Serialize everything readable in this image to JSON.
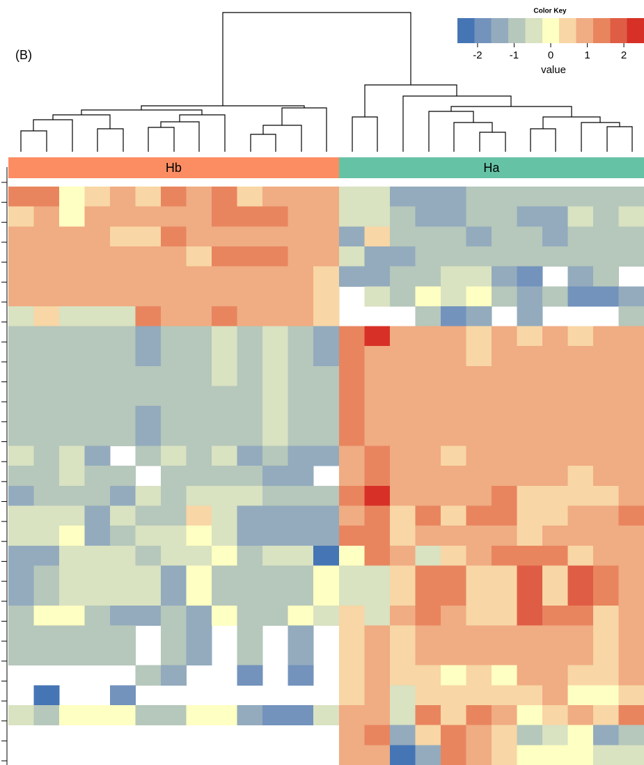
{
  "chart_data": {
    "type": "heatmap",
    "label": "(B)",
    "groups": [
      {
        "name": "Hb",
        "color": "#fc8d62"
      },
      {
        "name": "Ha",
        "color": "#66c2a5"
      }
    ],
    "column_groups": [
      0,
      0,
      0,
      0,
      0,
      0,
      0,
      0,
      0,
      0,
      0,
      0,
      0,
      1,
      1,
      1,
      1,
      1,
      1,
      1,
      1,
      1,
      1,
      1,
      1
    ],
    "colorbar": {
      "title": "Color Key",
      "label": "value",
      "lim": [
        -2.55,
        2.55
      ],
      "ticks": [
        -2,
        -1,
        0,
        1,
        2
      ],
      "colors": [
        "#4575b4",
        "#7393bd",
        "#93abbd",
        "#b6c7bb",
        "#d9e2c1",
        "#feffc2",
        "#f8d6a5",
        "#f0ac83",
        "#e8855f",
        "#df5d45",
        "#d73027"
      ]
    },
    "values": [
      [
        1.4,
        1.4,
        0,
        0.5,
        0.9,
        0.5,
        1.4,
        0.9,
        1.4,
        0.5,
        0.9,
        0.9,
        0.9,
        -0.5,
        -0.5,
        -1.4,
        -1.4,
        -1.4,
        -0.9,
        -0.9,
        -0.9,
        -0.9,
        -0.9,
        -0.9,
        -0.9
      ],
      [
        0.5,
        0.9,
        0,
        0.9,
        0.9,
        0.9,
        0.9,
        0.9,
        1.4,
        1.4,
        1.4,
        0.9,
        0.9,
        -0.5,
        -0.5,
        -0.9,
        -1.4,
        -1.4,
        -0.9,
        -0.9,
        -1.4,
        -1.4,
        -0.5,
        -0.9,
        -0.5
      ],
      [
        0.9,
        0.9,
        0.9,
        0.9,
        0.5,
        0.5,
        1.4,
        0.9,
        0.9,
        0.9,
        0.9,
        0.9,
        0.9,
        -1.4,
        0.5,
        -0.9,
        -0.9,
        -0.9,
        -1.4,
        -0.9,
        -0.9,
        -1.4,
        -0.9,
        -0.9,
        -0.9
      ],
      [
        0.9,
        0.9,
        0.9,
        0.9,
        0.9,
        0.9,
        0.9,
        0.5,
        1.4,
        1.4,
        1.4,
        0.9,
        0.9,
        -0.5,
        -1.4,
        -1.4,
        -0.9,
        -0.9,
        -0.9,
        -0.9,
        -0.9,
        -0.9,
        -0.9,
        -0.9,
        -0.9
      ],
      [
        0.9,
        0.9,
        0.9,
        0.9,
        0.9,
        0.9,
        0.9,
        0.9,
        0.9,
        0.9,
        0.9,
        0.9,
        0.5,
        -1.4,
        -1.4,
        -0.9,
        -0.9,
        -0.5,
        -0.5,
        -1.4,
        -1.9,
        null,
        -1.4,
        -0.9,
        null
      ],
      [
        0.9,
        0.9,
        0.9,
        0.9,
        0.9,
        0.9,
        0.9,
        0.9,
        0.9,
        0.9,
        0.9,
        0.9,
        0.5,
        null,
        -0.5,
        -0.9,
        0,
        -0.5,
        0,
        -0.9,
        -1.4,
        -0.9,
        -1.9,
        -1.9,
        -1.4
      ],
      [
        -0.5,
        0.5,
        -0.5,
        -0.5,
        -0.5,
        1.4,
        0.9,
        0.9,
        1.4,
        0.9,
        0.9,
        0.9,
        0.5,
        null,
        null,
        null,
        -0.9,
        -1.9,
        -1.4,
        null,
        -1.4,
        null,
        null,
        null,
        -0.9
      ],
      [
        -0.9,
        -0.9,
        -0.9,
        -0.9,
        -0.9,
        -1.4,
        -0.9,
        -0.9,
        -0.5,
        -0.9,
        -0.5,
        -0.9,
        -1.4,
        1.4,
        2.3,
        0.9,
        0.9,
        0.9,
        0.5,
        0.9,
        0.5,
        0.9,
        0.5,
        0.9,
        0.9
      ],
      [
        -0.9,
        -0.9,
        -0.9,
        -0.9,
        -0.9,
        -1.4,
        -0.9,
        -0.9,
        -0.5,
        -0.9,
        -0.5,
        -0.9,
        -1.4,
        1.4,
        0.9,
        0.9,
        0.9,
        0.9,
        0.5,
        0.9,
        0.9,
        0.9,
        0.9,
        0.9,
        0.9
      ],
      [
        -0.9,
        -0.9,
        -0.9,
        -0.9,
        -0.9,
        -0.9,
        -0.9,
        -0.9,
        -0.5,
        -0.9,
        -0.5,
        -0.9,
        -0.9,
        1.4,
        0.9,
        0.9,
        0.9,
        0.9,
        0.9,
        0.9,
        0.9,
        0.9,
        0.9,
        0.9,
        0.9
      ],
      [
        -0.9,
        -0.9,
        -0.9,
        -0.9,
        -0.9,
        -0.9,
        -0.9,
        -0.9,
        -0.9,
        -0.9,
        -0.5,
        -0.9,
        -0.9,
        1.4,
        0.9,
        0.9,
        0.9,
        0.9,
        0.9,
        0.9,
        0.9,
        0.9,
        0.9,
        0.9,
        0.9
      ],
      [
        -0.9,
        -0.9,
        -0.9,
        -0.9,
        -0.9,
        -1.4,
        -0.9,
        -0.9,
        -0.9,
        -0.9,
        -0.5,
        -0.9,
        -0.9,
        1.4,
        0.9,
        0.9,
        0.9,
        0.9,
        0.9,
        0.9,
        0.9,
        0.9,
        0.9,
        0.9,
        0.9
      ],
      [
        -0.9,
        -0.9,
        -0.9,
        -0.9,
        -0.9,
        -1.4,
        -0.9,
        -0.9,
        -0.9,
        -0.9,
        -0.5,
        -0.9,
        -0.9,
        1.4,
        0.9,
        0.9,
        0.9,
        0.9,
        0.9,
        0.9,
        0.9,
        0.9,
        0.9,
        0.9,
        0.9
      ],
      [
        -0.5,
        -0.9,
        -0.5,
        -1.4,
        null,
        -0.9,
        -0.5,
        -0.9,
        -0.5,
        -1.4,
        -0.9,
        -1.4,
        -1.4,
        0.9,
        1.4,
        0.9,
        0.9,
        0.5,
        0.9,
        0.9,
        0.9,
        0.9,
        0.9,
        0.9,
        0.9
      ],
      [
        -0.9,
        -0.9,
        -0.5,
        -0.9,
        -0.9,
        null,
        -0.9,
        -0.9,
        -0.9,
        -0.9,
        -1.4,
        -1.4,
        null,
        0.9,
        1.4,
        0.9,
        0.9,
        0.9,
        0.9,
        0.9,
        0.9,
        0.9,
        0.5,
        0.9,
        0.9
      ],
      [
        -1.4,
        -0.9,
        -0.9,
        -0.9,
        -1.4,
        -0.5,
        -0.9,
        -0.5,
        -0.5,
        -0.5,
        -0.9,
        -0.9,
        -0.9,
        1.4,
        2.3,
        0.9,
        0.9,
        0.9,
        0.9,
        1.4,
        0.5,
        0.5,
        0.5,
        0.5,
        0.9
      ],
      [
        -0.5,
        -0.5,
        -0.5,
        -1.4,
        -0.5,
        -0.9,
        -0.9,
        0.5,
        -0.5,
        -1.4,
        -1.4,
        -1.4,
        -1.4,
        0.9,
        1.4,
        0.5,
        1.4,
        0.5,
        1.4,
        1.4,
        0.5,
        0.5,
        0.9,
        0.9,
        1.4
      ],
      [
        -0.5,
        -0.5,
        0,
        -1.4,
        -0.9,
        -0.5,
        -0.5,
        0,
        -0.5,
        -1.4,
        -1.4,
        -1.4,
        -1.4,
        1.4,
        1.4,
        0.5,
        0.9,
        0.9,
        0.9,
        0.9,
        0.5,
        0.9,
        0.9,
        0.9,
        0.9
      ],
      [
        -1.4,
        -1.4,
        -0.5,
        -0.5,
        -0.5,
        -0.9,
        -0.5,
        -0.5,
        0,
        -0.9,
        -0.5,
        -0.5,
        -2.3,
        0,
        1.4,
        0.9,
        -0.5,
        0.5,
        0.9,
        1.4,
        1.4,
        1.4,
        0.5,
        0.9,
        0.9
      ],
      [
        -1.4,
        -0.9,
        -0.5,
        -0.5,
        -0.5,
        -0.5,
        -1.4,
        0,
        -0.9,
        -0.9,
        -0.9,
        -0.9,
        0,
        -0.5,
        -0.5,
        0.5,
        1.4,
        1.4,
        0.5,
        0.5,
        1.9,
        0.5,
        1.9,
        1.4,
        0.9
      ],
      [
        -1.4,
        -0.9,
        -0.5,
        -0.5,
        -0.5,
        -0.5,
        -1.4,
        0,
        -0.9,
        -0.9,
        -0.9,
        -0.9,
        0,
        -0.5,
        -0.5,
        0.5,
        1.4,
        1.4,
        0.5,
        0.5,
        1.9,
        0.5,
        1.9,
        1.4,
        0.9
      ],
      [
        -0.9,
        0,
        0,
        -0.9,
        -1.4,
        -1.4,
        -0.9,
        -1.4,
        0,
        -0.9,
        -0.9,
        0,
        -0.5,
        0.5,
        -0.5,
        0.9,
        1.4,
        0.9,
        0.5,
        0.5,
        1.9,
        1.4,
        1.4,
        0.5,
        0.9
      ],
      [
        -0.9,
        -0.9,
        -0.9,
        -0.9,
        -0.9,
        null,
        -0.9,
        -1.4,
        null,
        -0.9,
        null,
        -1.4,
        null,
        0.5,
        0.9,
        0.5,
        0.9,
        0.9,
        0.9,
        0.9,
        0.9,
        0.9,
        0.9,
        0.5,
        0.9
      ],
      [
        -0.9,
        -0.9,
        -0.9,
        -0.9,
        -0.9,
        null,
        -0.9,
        -1.4,
        null,
        -0.9,
        null,
        -1.4,
        null,
        0.5,
        0.9,
        0.5,
        0.9,
        0.9,
        0.9,
        0.9,
        0.9,
        0.9,
        0.9,
        0.5,
        0.9
      ],
      [
        null,
        null,
        null,
        null,
        null,
        -0.9,
        -1.4,
        null,
        null,
        -1.9,
        null,
        -1.9,
        null,
        0.5,
        0.9,
        0.5,
        0.5,
        0,
        0.5,
        0,
        0.9,
        0.9,
        0.5,
        0.5,
        0.9
      ],
      [
        null,
        -2.3,
        null,
        null,
        -1.9,
        null,
        null,
        null,
        null,
        null,
        null,
        null,
        null,
        0.5,
        0.9,
        -0.5,
        0.5,
        0.5,
        0.5,
        0.5,
        0.5,
        0.9,
        0,
        0,
        0.5
      ],
      [
        -0.5,
        -0.9,
        0,
        0,
        0,
        -0.9,
        -0.9,
        0,
        0,
        -1.4,
        -1.9,
        -1.9,
        -0.5,
        0.9,
        0.9,
        -0.5,
        1.4,
        0.5,
        1.4,
        0.9,
        0,
        0.5,
        0.9,
        0.5,
        1.4
      ],
      [
        null,
        null,
        null,
        null,
        null,
        null,
        null,
        null,
        null,
        null,
        null,
        null,
        null,
        0.9,
        1.4,
        -1.4,
        0.5,
        1.4,
        0.9,
        0.5,
        -0.9,
        -0.5,
        0,
        -1.4,
        -0.9
      ],
      [
        null,
        null,
        null,
        null,
        null,
        null,
        null,
        null,
        null,
        null,
        null,
        null,
        null,
        0.9,
        0.9,
        -2.3,
        -1.4,
        1.4,
        0.9,
        0.5,
        0,
        0,
        0,
        -0.5,
        -0.5
      ]
    ]
  }
}
